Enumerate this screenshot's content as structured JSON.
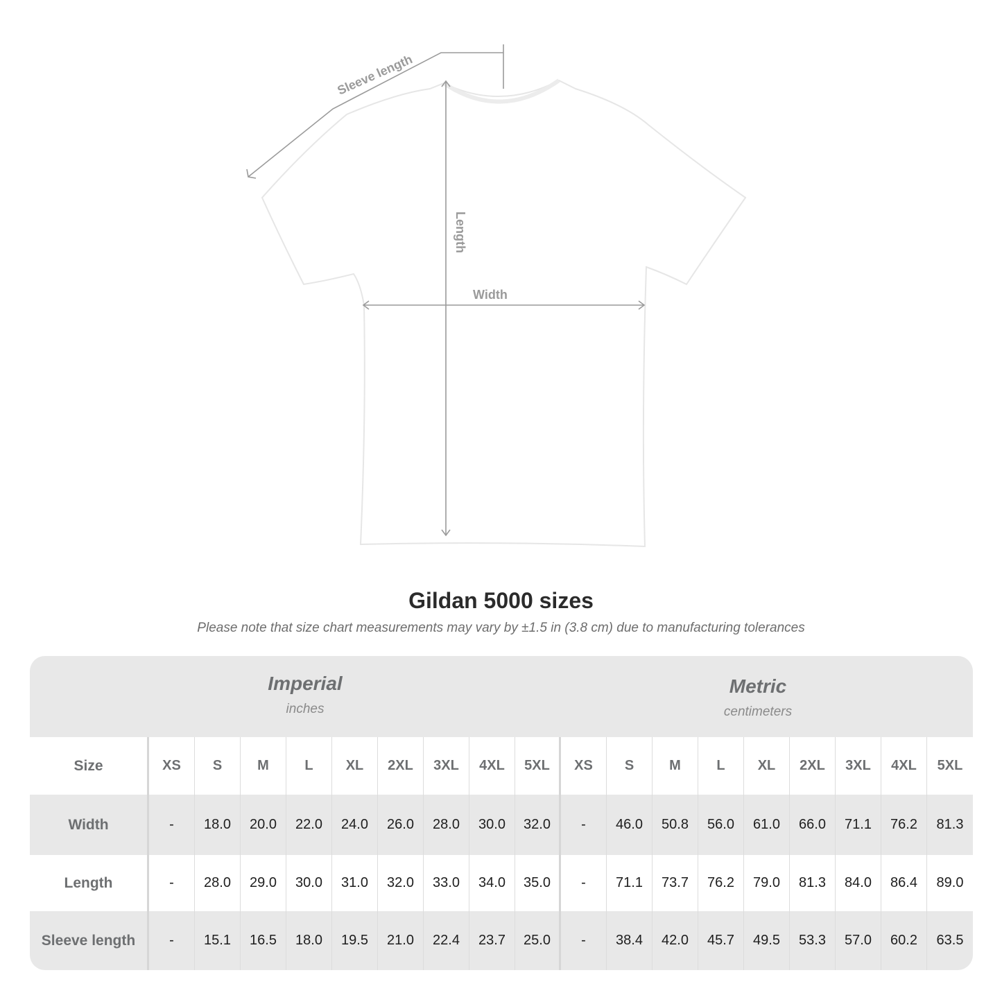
{
  "diagram": {
    "labels": {
      "sleeve": "Sleeve length",
      "length": "Length",
      "width": "Width"
    },
    "colors": {
      "shirt": "#ffffff",
      "shirt_edge": "#e6e6e6",
      "measure_line": "#9a9a9a"
    }
  },
  "title": "Gildan 5000 sizes",
  "subtitle": "Please note that size chart measurements may vary by ±1.5 in (3.8 cm) due to manufacturing tolerances",
  "table": {
    "systems": [
      {
        "name": "Imperial",
        "unit": "inches"
      },
      {
        "name": "Metric",
        "unit": "centimeters"
      }
    ],
    "size_label": "Size",
    "sizes": [
      "XS",
      "S",
      "M",
      "L",
      "XL",
      "2XL",
      "3XL",
      "4XL",
      "5XL"
    ],
    "rows": [
      {
        "label": "Width",
        "imperial": [
          "-",
          "18.0",
          "20.0",
          "22.0",
          "24.0",
          "26.0",
          "28.0",
          "30.0",
          "32.0"
        ],
        "metric": [
          "-",
          "46.0",
          "50.8",
          "56.0",
          "61.0",
          "66.0",
          "71.1",
          "76.2",
          "81.3"
        ]
      },
      {
        "label": "Length",
        "imperial": [
          "-",
          "28.0",
          "29.0",
          "30.0",
          "31.0",
          "32.0",
          "33.0",
          "34.0",
          "35.0"
        ],
        "metric": [
          "-",
          "71.1",
          "73.7",
          "76.2",
          "79.0",
          "81.3",
          "84.0",
          "86.4",
          "89.0"
        ]
      },
      {
        "label": "Sleeve length",
        "imperial": [
          "-",
          "15.1",
          "16.5",
          "18.0",
          "19.5",
          "21.0",
          "22.4",
          "23.7",
          "25.0"
        ],
        "metric": [
          "-",
          "38.4",
          "42.0",
          "45.7",
          "49.5",
          "53.3",
          "57.0",
          "60.2",
          "63.5"
        ]
      }
    ]
  }
}
